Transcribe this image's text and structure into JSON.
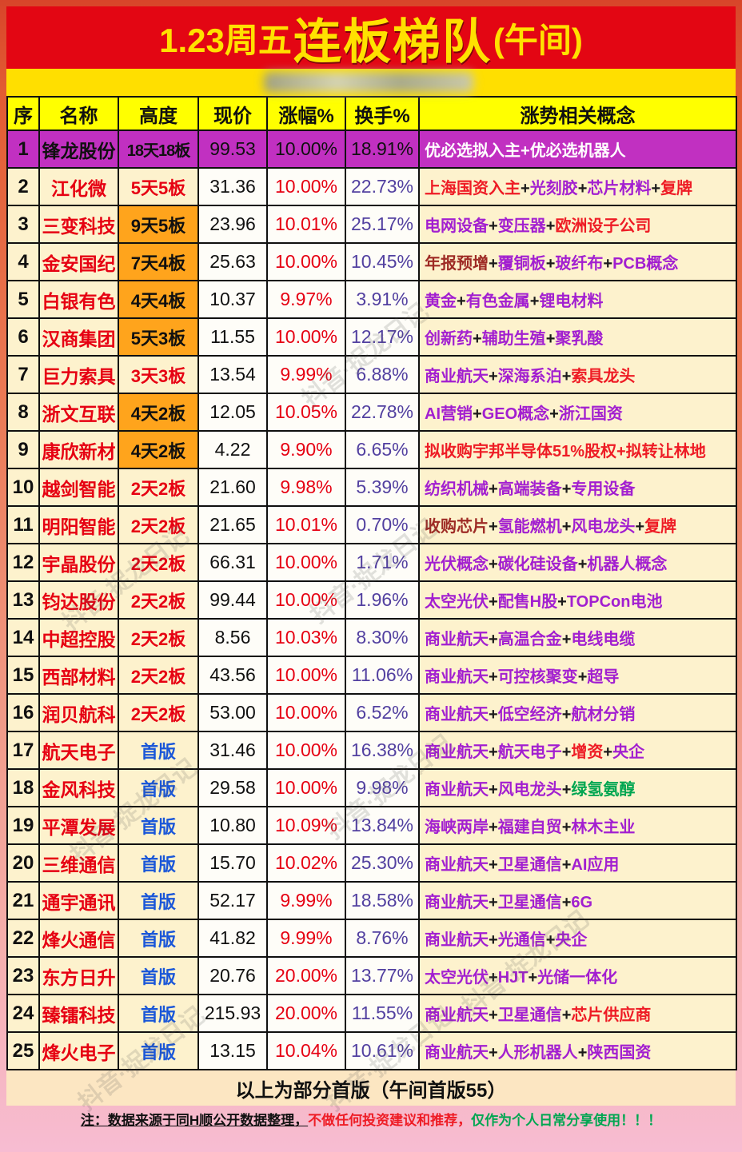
{
  "title": {
    "prefix": "1.23周五",
    "main": "连板梯队",
    "suffix": "(午间)"
  },
  "watermark": {
    "text": "抖音·捉龙日记"
  },
  "colors": {
    "title_bg": "#e30613",
    "title_text": "#ffe100",
    "header_bg": "#ffff00",
    "row_cream": "#fdf2cd",
    "row_white": "#fefdf8",
    "purple_row": "#c130c1",
    "orange_height": "#ffa41c",
    "name_red": "#e60012",
    "first_board_blue": "#1b57d8",
    "turnover_purple": "#5240a0",
    "concept": {
      "P": "#a21fd0",
      "R": "#ee1c25",
      "DR": "#9e2b25",
      "G": "#00a651",
      "W": "#ffffff",
      "K": "#1a1a1a"
    }
  },
  "chart_data": {
    "type": "table",
    "title": "1.23周五连板梯队(午间)",
    "columns": [
      "序",
      "名称",
      "高度",
      "现价",
      "涨幅%",
      "换手%",
      "涨势相关概念"
    ],
    "rows": [
      {
        "no": "1",
        "name": "锋龙股份",
        "height": "18天18板",
        "height_style": "plain",
        "row_style": "purple",
        "price": "99.53",
        "change": "10.00%",
        "turnover": "18.91%",
        "concepts": [
          {
            "t": "优必选拟入主",
            "c": "W"
          },
          {
            "t": "+",
            "c": "W"
          },
          {
            "t": "优必选机器人",
            "c": "W"
          }
        ]
      },
      {
        "no": "2",
        "name": "江化微",
        "height": "5天5板",
        "height_style": "red",
        "row_style": "normal",
        "price": "31.36",
        "change": "10.00%",
        "turnover": "22.73%",
        "concepts": [
          {
            "t": "上海国资入主",
            "c": "R"
          },
          {
            "t": "+",
            "c": "K"
          },
          {
            "t": "光刻胶",
            "c": "P"
          },
          {
            "t": "+",
            "c": "K"
          },
          {
            "t": "芯片材料",
            "c": "P"
          },
          {
            "t": "+",
            "c": "K"
          },
          {
            "t": "复牌",
            "c": "R"
          }
        ]
      },
      {
        "no": "3",
        "name": "三变科技",
        "height": "9天5板",
        "height_style": "orange",
        "row_style": "normal",
        "price": "23.96",
        "change": "10.01%",
        "turnover": "25.17%",
        "concepts": [
          {
            "t": "电网设备",
            "c": "P"
          },
          {
            "t": "+",
            "c": "K"
          },
          {
            "t": "变压器",
            "c": "P"
          },
          {
            "t": "+",
            "c": "K"
          },
          {
            "t": "欧洲设子公司",
            "c": "R"
          }
        ]
      },
      {
        "no": "4",
        "name": "金安国纪",
        "height": "7天4板",
        "height_style": "orange",
        "row_style": "normal",
        "price": "25.63",
        "change": "10.00%",
        "turnover": "10.45%",
        "concepts": [
          {
            "t": "年报预增",
            "c": "DR"
          },
          {
            "t": "+",
            "c": "K"
          },
          {
            "t": "覆铜板",
            "c": "P"
          },
          {
            "t": "+",
            "c": "K"
          },
          {
            "t": "玻纤布",
            "c": "P"
          },
          {
            "t": "+",
            "c": "K"
          },
          {
            "t": "PCB概念",
            "c": "P"
          }
        ]
      },
      {
        "no": "5",
        "name": "白银有色",
        "height": "4天4板",
        "height_style": "orange",
        "row_style": "normal",
        "price": "10.37",
        "change": "9.97%",
        "turnover": "3.91%",
        "concepts": [
          {
            "t": "黄金",
            "c": "P"
          },
          {
            "t": "+",
            "c": "K"
          },
          {
            "t": "有色金属",
            "c": "P"
          },
          {
            "t": "+",
            "c": "K"
          },
          {
            "t": "锂电材料",
            "c": "P"
          }
        ]
      },
      {
        "no": "6",
        "name": "汉商集团",
        "height": "5天3板",
        "height_style": "orange",
        "row_style": "normal",
        "price": "11.55",
        "change": "10.00%",
        "turnover": "12.17%",
        "concepts": [
          {
            "t": "创新药",
            "c": "P"
          },
          {
            "t": "+",
            "c": "K"
          },
          {
            "t": "辅助生殖",
            "c": "P"
          },
          {
            "t": "+",
            "c": "K"
          },
          {
            "t": "聚乳酸",
            "c": "P"
          }
        ]
      },
      {
        "no": "7",
        "name": "巨力索具",
        "height": "3天3板",
        "height_style": "red",
        "row_style": "normal",
        "price": "13.54",
        "change": "9.99%",
        "turnover": "6.88%",
        "concepts": [
          {
            "t": "商业航天",
            "c": "P"
          },
          {
            "t": "+",
            "c": "K"
          },
          {
            "t": "深海系泊",
            "c": "P"
          },
          {
            "t": "+",
            "c": "K"
          },
          {
            "t": "索具龙头",
            "c": "R"
          }
        ]
      },
      {
        "no": "8",
        "name": "浙文互联",
        "height": "4天2板",
        "height_style": "orange",
        "row_style": "normal",
        "price": "12.05",
        "change": "10.05%",
        "turnover": "22.78%",
        "concepts": [
          {
            "t": "AI营销",
            "c": "P"
          },
          {
            "t": "+",
            "c": "K"
          },
          {
            "t": "GEO概念",
            "c": "P"
          },
          {
            "t": "+",
            "c": "K"
          },
          {
            "t": "浙江国资",
            "c": "P"
          }
        ]
      },
      {
        "no": "9",
        "name": "康欣新材",
        "height": "4天2板",
        "height_style": "orange",
        "row_style": "normal",
        "price": "4.22",
        "change": "9.90%",
        "turnover": "6.65%",
        "concepts": [
          {
            "t": "拟收购宇邦半导体51%股权",
            "c": "R"
          },
          {
            "t": "+",
            "c": "R"
          },
          {
            "t": "拟转让林地",
            "c": "R"
          }
        ]
      },
      {
        "no": "10",
        "name": "越剑智能",
        "height": "2天2板",
        "height_style": "red",
        "row_style": "normal",
        "price": "21.60",
        "change": "9.98%",
        "turnover": "5.39%",
        "concepts": [
          {
            "t": "纺织机械",
            "c": "P"
          },
          {
            "t": "+",
            "c": "K"
          },
          {
            "t": "高端装备",
            "c": "P"
          },
          {
            "t": "+",
            "c": "K"
          },
          {
            "t": "专用设备",
            "c": "P"
          }
        ]
      },
      {
        "no": "11",
        "name": "明阳智能",
        "height": "2天2板",
        "height_style": "red",
        "row_style": "normal",
        "price": "21.65",
        "change": "10.01%",
        "turnover": "0.70%",
        "concepts": [
          {
            "t": "收购芯片",
            "c": "DR"
          },
          {
            "t": "+",
            "c": "K"
          },
          {
            "t": "氢能燃机",
            "c": "P"
          },
          {
            "t": "+",
            "c": "K"
          },
          {
            "t": "风电龙头",
            "c": "P"
          },
          {
            "t": "+",
            "c": "K"
          },
          {
            "t": "复牌",
            "c": "R"
          }
        ]
      },
      {
        "no": "12",
        "name": "宇晶股份",
        "height": "2天2板",
        "height_style": "red",
        "row_style": "normal",
        "price": "66.31",
        "change": "10.00%",
        "turnover": "1.71%",
        "concepts": [
          {
            "t": "光伏概念",
            "c": "P"
          },
          {
            "t": "+",
            "c": "K"
          },
          {
            "t": "碳化硅设备",
            "c": "P"
          },
          {
            "t": "+",
            "c": "K"
          },
          {
            "t": "机器人概念",
            "c": "P"
          }
        ]
      },
      {
        "no": "13",
        "name": "钧达股份",
        "height": "2天2板",
        "height_style": "red",
        "row_style": "normal",
        "price": "99.44",
        "change": "10.00%",
        "turnover": "1.96%",
        "concepts": [
          {
            "t": "太空光伏",
            "c": "P"
          },
          {
            "t": "+",
            "c": "K"
          },
          {
            "t": "配售H股",
            "c": "P"
          },
          {
            "t": "+",
            "c": "K"
          },
          {
            "t": "TOPCon电池",
            "c": "P"
          }
        ]
      },
      {
        "no": "14",
        "name": "中超控股",
        "height": "2天2板",
        "height_style": "red",
        "row_style": "normal",
        "price": "8.56",
        "change": "10.03%",
        "turnover": "8.30%",
        "concepts": [
          {
            "t": "商业航天",
            "c": "P"
          },
          {
            "t": "+",
            "c": "K"
          },
          {
            "t": "高温合金",
            "c": "P"
          },
          {
            "t": "+",
            "c": "K"
          },
          {
            "t": "电线电缆",
            "c": "P"
          }
        ]
      },
      {
        "no": "15",
        "name": "西部材料",
        "height": "2天2板",
        "height_style": "red",
        "row_style": "normal",
        "price": "43.56",
        "change": "10.00%",
        "turnover": "11.06%",
        "concepts": [
          {
            "t": "商业航天",
            "c": "P"
          },
          {
            "t": "+",
            "c": "K"
          },
          {
            "t": "可控核聚变",
            "c": "P"
          },
          {
            "t": "+",
            "c": "K"
          },
          {
            "t": "超导",
            "c": "P"
          }
        ]
      },
      {
        "no": "16",
        "name": "润贝航科",
        "height": "2天2板",
        "height_style": "red",
        "row_style": "normal",
        "price": "53.00",
        "change": "10.00%",
        "turnover": "6.52%",
        "concepts": [
          {
            "t": "商业航天",
            "c": "P"
          },
          {
            "t": "+",
            "c": "K"
          },
          {
            "t": "低空经济",
            "c": "P"
          },
          {
            "t": "+",
            "c": "K"
          },
          {
            "t": "航材分销",
            "c": "P"
          }
        ]
      },
      {
        "no": "17",
        "name": "航天电子",
        "height": "首版",
        "height_style": "blue",
        "row_style": "normal",
        "price": "31.46",
        "change": "10.00%",
        "turnover": "16.38%",
        "concepts": [
          {
            "t": "商业航天",
            "c": "P"
          },
          {
            "t": "+",
            "c": "K"
          },
          {
            "t": "航天电子",
            "c": "P"
          },
          {
            "t": "+",
            "c": "K"
          },
          {
            "t": "增资",
            "c": "R"
          },
          {
            "t": "+",
            "c": "K"
          },
          {
            "t": "央企",
            "c": "P"
          }
        ]
      },
      {
        "no": "18",
        "name": "金风科技",
        "height": "首版",
        "height_style": "blue",
        "row_style": "normal",
        "price": "29.58",
        "change": "10.00%",
        "turnover": "9.98%",
        "concepts": [
          {
            "t": "商业航天",
            "c": "P"
          },
          {
            "t": "+",
            "c": "K"
          },
          {
            "t": "风电龙头",
            "c": "P"
          },
          {
            "t": "+",
            "c": "K"
          },
          {
            "t": "绿氢氨醇",
            "c": "G"
          }
        ]
      },
      {
        "no": "19",
        "name": "平潭发展",
        "height": "首版",
        "height_style": "blue",
        "row_style": "normal",
        "price": "10.80",
        "change": "10.09%",
        "turnover": "13.84%",
        "concepts": [
          {
            "t": "海峡两岸",
            "c": "P"
          },
          {
            "t": "+",
            "c": "K"
          },
          {
            "t": "福建自贸",
            "c": "P"
          },
          {
            "t": "+",
            "c": "K"
          },
          {
            "t": "林木主业",
            "c": "P"
          }
        ]
      },
      {
        "no": "20",
        "name": "三维通信",
        "height": "首版",
        "height_style": "blue",
        "row_style": "normal",
        "price": "15.70",
        "change": "10.02%",
        "turnover": "25.30%",
        "concepts": [
          {
            "t": "商业航天",
            "c": "P"
          },
          {
            "t": "+",
            "c": "K"
          },
          {
            "t": "卫星通信",
            "c": "P"
          },
          {
            "t": "+",
            "c": "K"
          },
          {
            "t": "AI应用",
            "c": "P"
          }
        ]
      },
      {
        "no": "21",
        "name": "通宇通讯",
        "height": "首版",
        "height_style": "blue",
        "row_style": "normal",
        "price": "52.17",
        "change": "9.99%",
        "turnover": "18.58%",
        "concepts": [
          {
            "t": "商业航天",
            "c": "P"
          },
          {
            "t": "+",
            "c": "K"
          },
          {
            "t": "卫星通信",
            "c": "P"
          },
          {
            "t": "+",
            "c": "K"
          },
          {
            "t": "6G",
            "c": "P"
          }
        ]
      },
      {
        "no": "22",
        "name": "烽火通信",
        "height": "首版",
        "height_style": "blue",
        "row_style": "normal",
        "price": "41.82",
        "change": "9.99%",
        "turnover": "8.76%",
        "concepts": [
          {
            "t": "商业航天",
            "c": "P"
          },
          {
            "t": "+",
            "c": "K"
          },
          {
            "t": "光通信",
            "c": "P"
          },
          {
            "t": "+",
            "c": "K"
          },
          {
            "t": "央企",
            "c": "P"
          }
        ]
      },
      {
        "no": "23",
        "name": "东方日升",
        "height": "首版",
        "height_style": "blue",
        "row_style": "normal",
        "price": "20.76",
        "change": "20.00%",
        "turnover": "13.77%",
        "concepts": [
          {
            "t": "太空光伏",
            "c": "P"
          },
          {
            "t": "+",
            "c": "K"
          },
          {
            "t": "HJT",
            "c": "P"
          },
          {
            "t": "+",
            "c": "K"
          },
          {
            "t": "光储一体化",
            "c": "P"
          }
        ]
      },
      {
        "no": "24",
        "name": "臻镭科技",
        "height": "首版",
        "height_style": "blue",
        "row_style": "normal",
        "price": "215.93",
        "change": "20.00%",
        "turnover": "11.55%",
        "concepts": [
          {
            "t": "商业航天",
            "c": "P"
          },
          {
            "t": "+",
            "c": "K"
          },
          {
            "t": "卫星通信",
            "c": "P"
          },
          {
            "t": "+",
            "c": "K"
          },
          {
            "t": "芯片供应商",
            "c": "R"
          }
        ]
      },
      {
        "no": "25",
        "name": "烽火电子",
        "height": "首版",
        "height_style": "blue",
        "row_style": "normal",
        "price": "13.15",
        "change": "10.04%",
        "turnover": "10.61%",
        "concepts": [
          {
            "t": "商业航天",
            "c": "P"
          },
          {
            "t": "+",
            "c": "K"
          },
          {
            "t": "人形机器人",
            "c": "P"
          },
          {
            "t": "+",
            "c": "K"
          },
          {
            "t": "陕西国资",
            "c": "P"
          }
        ]
      }
    ]
  },
  "footer": {
    "text": "以上为部分首版（午间首版55）"
  },
  "note": {
    "segments": [
      {
        "t": "注：数据来源于同H顺公开数据整理，",
        "c": "#111111",
        "u": true
      },
      {
        "t": "不做任何投资建议和推荐，",
        "c": "#ee1c25",
        "u": false
      },
      {
        "t": "仅作为个人日常分享使用！！！",
        "c": "#00a651",
        "u": false
      }
    ]
  }
}
